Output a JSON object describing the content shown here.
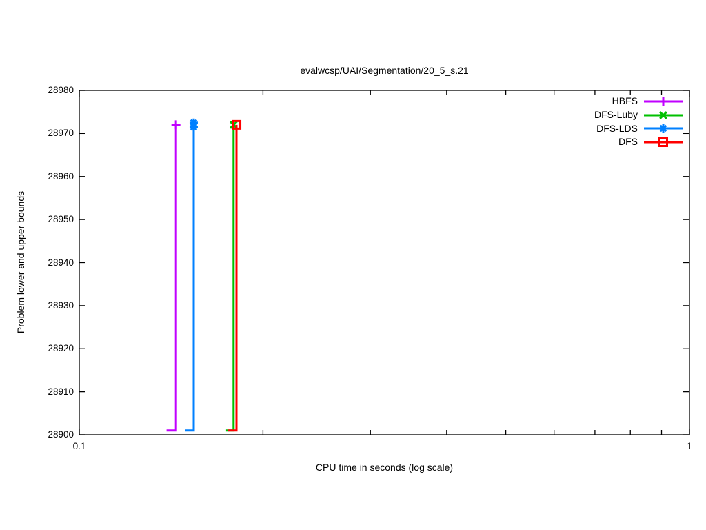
{
  "chart_data": {
    "type": "line",
    "title": "evalwcsp/UAI/Segmentation/20_5_s.21",
    "xlabel": "CPU time in seconds (log scale)",
    "ylabel": "Problem lower and upper bounds",
    "xscale": "log",
    "xlim": [
      0.1,
      1
    ],
    "ylim": [
      28900,
      28980
    ],
    "yticks": [
      28900,
      28910,
      28920,
      28930,
      28940,
      28950,
      28960,
      28970,
      28980
    ],
    "xticks_labeled": [
      {
        "value": 0.1,
        "label": "0.1"
      },
      {
        "value": 1,
        "label": "1"
      }
    ],
    "xticks_minor": [
      0.2,
      0.3,
      0.4,
      0.5,
      0.6,
      0.7,
      0.8,
      0.9
    ],
    "grid": false,
    "legend_position": "top-right-inside",
    "border_color": "#000000",
    "line_width": 3,
    "series": [
      {
        "name": "HBFS",
        "color": "#c000ff",
        "marker": "plus",
        "points": [
          [
            0.139,
            28901
          ],
          [
            0.144,
            28901
          ],
          [
            0.144,
            28972
          ]
        ],
        "marker_points": [
          [
            0.144,
            28972
          ]
        ]
      },
      {
        "name": "DFS-Luby",
        "color": "#00c000",
        "marker": "x",
        "points": [
          [
            0.174,
            28901
          ],
          [
            0.179,
            28901
          ],
          [
            0.179,
            28972
          ]
        ],
        "marker_points": [
          [
            0.179,
            28972
          ]
        ]
      },
      {
        "name": "DFS-LDS",
        "color": "#0080ff",
        "marker": "asterisk",
        "points": [
          [
            0.149,
            28901
          ],
          [
            0.154,
            28901
          ],
          [
            0.154,
            28972
          ]
        ],
        "marker_points": [
          [
            0.154,
            28972.5
          ],
          [
            0.154,
            28971.5
          ]
        ]
      },
      {
        "name": "DFS",
        "color": "#ff0000",
        "marker": "square-open",
        "points": [
          [
            0.175,
            28901
          ],
          [
            0.181,
            28901
          ],
          [
            0.181,
            28972
          ]
        ],
        "marker_points": [
          [
            0.181,
            28972
          ]
        ]
      }
    ],
    "legend_order": [
      "HBFS",
      "DFS-Luby",
      "DFS-LDS",
      "DFS"
    ]
  }
}
